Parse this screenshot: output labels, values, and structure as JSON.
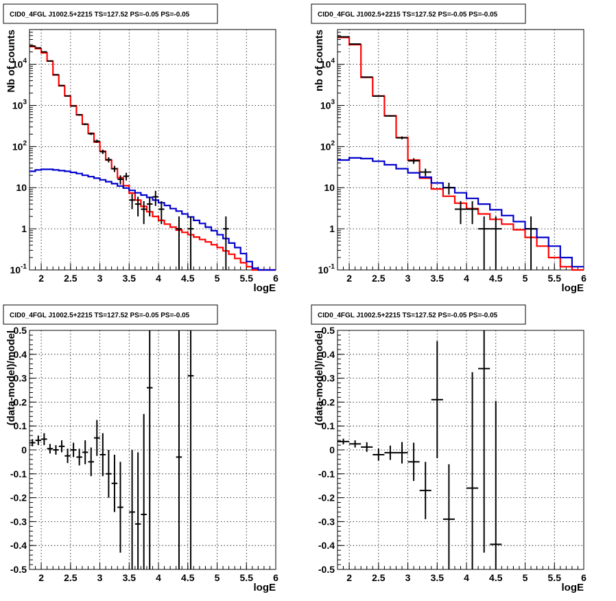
{
  "page": {
    "background": "#ffffff"
  },
  "colors": {
    "data": "#000000",
    "total_model": "#ff0000",
    "source_model": "#0000cc",
    "grid": "#000000"
  },
  "chart_data": [
    {
      "id": "top-left",
      "type": "line",
      "title": "CID0_4FGL J1002.5+2215 TS=127.52 PS=-0.05 PS=-0.05",
      "xlabel": "logE",
      "ylabel": "Nb of counts",
      "yscale": "log",
      "xlim": [
        1.8,
        6.0
      ],
      "ylim": [
        0.1,
        70000
      ],
      "xticks": [
        2,
        2.5,
        3,
        3.5,
        4,
        4.5,
        5,
        5.5,
        6
      ],
      "xtick_labels": [
        "2",
        "2.5",
        "3",
        "3.5",
        "4",
        "4.5",
        "5",
        "5.5",
        "6"
      ],
      "yticks": [
        0.1,
        1,
        10,
        100,
        1000,
        10000
      ],
      "ytick_labels": [
        "10^-1",
        "1",
        "10",
        "10^2",
        "10^3",
        "10^4"
      ],
      "grid": true,
      "bin_edges": [
        1.8,
        1.9,
        2.0,
        2.1,
        2.2,
        2.3,
        2.4,
        2.5,
        2.6,
        2.7,
        2.8,
        2.9,
        3.0,
        3.1,
        3.2,
        3.3,
        3.4,
        3.5,
        3.6,
        3.7,
        3.8,
        3.9,
        4.0,
        4.1,
        4.2,
        4.3,
        4.4,
        4.5,
        4.6,
        4.7,
        4.8,
        4.9,
        5.0,
        5.1,
        5.2,
        5.3,
        5.4,
        5.5,
        5.6,
        5.7,
        5.8,
        5.9,
        6.0
      ],
      "series": [
        {
          "role": "total_model",
          "style": "step",
          "values": [
            27000,
            24000,
            19000,
            12000,
            5500,
            3000,
            1700,
            980,
            590,
            350,
            210,
            128,
            77,
            47,
            29,
            17.5,
            11.2,
            7.4,
            5.0,
            3.5,
            2.6,
            2.0,
            1.6,
            1.3,
            1.1,
            0.93,
            0.82,
            0.72,
            0.63,
            0.55,
            0.48,
            0.41,
            0.35,
            0.29,
            0.24,
            0.19,
            0.15,
            0.12,
            0.1,
            0.1,
            0.1,
            0.1
          ]
        },
        {
          "role": "source_model",
          "style": "step",
          "values": [
            25,
            27,
            28,
            28,
            27,
            26,
            25,
            23.5,
            22,
            20,
            18.5,
            17,
            15.5,
            14,
            12.5,
            11,
            9.8,
            8.6,
            7.5,
            6.6,
            5.8,
            5.0,
            4.3,
            3.7,
            3.1,
            2.7,
            2.3,
            1.95,
            1.6,
            1.35,
            1.1,
            0.9,
            0.72,
            0.58,
            0.45,
            0.35,
            0.25,
            0.16,
            0.11,
            0.1,
            0.1,
            0.1
          ]
        },
        {
          "role": "data",
          "style": "errorbar",
          "points": [
            {
              "x": 1.85,
              "y": 27800,
              "ylo": 27600,
              "yhi": 28000
            },
            {
              "x": 1.95,
              "y": 25000,
              "ylo": 24800,
              "yhi": 25200
            },
            {
              "x": 2.05,
              "y": 20000,
              "ylo": 19850,
              "yhi": 20150
            },
            {
              "x": 2.15,
              "y": 12000,
              "ylo": 11890,
              "yhi": 12110
            },
            {
              "x": 2.25,
              "y": 5600,
              "ylo": 5525,
              "yhi": 5675
            },
            {
              "x": 2.35,
              "y": 3050,
              "ylo": 2995,
              "yhi": 3105
            },
            {
              "x": 2.45,
              "y": 1700,
              "ylo": 1659,
              "yhi": 1741
            },
            {
              "x": 2.55,
              "y": 970,
              "ylo": 939,
              "yhi": 1001
            },
            {
              "x": 2.65,
              "y": 590,
              "ylo": 566,
              "yhi": 614
            },
            {
              "x": 2.75,
              "y": 350,
              "ylo": 331,
              "yhi": 369
            },
            {
              "x": 2.85,
              "y": 205,
              "ylo": 191,
              "yhi": 219
            },
            {
              "x": 2.95,
              "y": 135,
              "ylo": 123,
              "yhi": 147
            },
            {
              "x": 3.05,
              "y": 75,
              "ylo": 66,
              "yhi": 84
            },
            {
              "x": 3.15,
              "y": 48,
              "ylo": 41,
              "yhi": 55
            },
            {
              "x": 3.25,
              "y": 29,
              "ylo": 24,
              "yhi": 34
            },
            {
              "x": 3.35,
              "y": 16,
              "ylo": 12,
              "yhi": 20
            },
            {
              "x": 3.45,
              "y": 19,
              "ylo": 15,
              "yhi": 23
            },
            {
              "x": 3.55,
              "y": 5,
              "ylo": 3,
              "yhi": 7
            },
            {
              "x": 3.65,
              "y": 4,
              "ylo": 2,
              "yhi": 6
            },
            {
              "x": 3.75,
              "y": 3,
              "ylo": 1.3,
              "yhi": 4.7
            },
            {
              "x": 3.85,
              "y": 4,
              "ylo": 2,
              "yhi": 6
            },
            {
              "x": 3.95,
              "y": 6,
              "ylo": 3.6,
              "yhi": 8.4
            },
            {
              "x": 4.05,
              "y": 3,
              "ylo": 1.3,
              "yhi": 4.7
            },
            {
              "x": 4.35,
              "y": 1,
              "ylo": 0.1,
              "yhi": 2.0
            },
            {
              "x": 4.55,
              "y": 1,
              "ylo": 0.1,
              "yhi": 2.0
            },
            {
              "x": 5.15,
              "y": 1,
              "ylo": 0.1,
              "yhi": 2.0
            }
          ]
        }
      ]
    },
    {
      "id": "top-right",
      "type": "line",
      "title": "CID0_4FGL J1002.5+2215 TS=127.52 PS=-0.05 PS=-0.05",
      "xlabel": "logE",
      "ylabel": "nb of counts",
      "yscale": "log",
      "xlim": [
        1.8,
        6.0
      ],
      "ylim": [
        0.1,
        70000
      ],
      "xticks": [
        2,
        2.5,
        3,
        3.5,
        4,
        4.5,
        5,
        5.5,
        6
      ],
      "xtick_labels": [
        "2",
        "2.5",
        "3",
        "3.5",
        "4",
        "4.5",
        "5",
        "5.5",
        "6"
      ],
      "yticks": [
        0.1,
        1,
        10,
        100,
        1000,
        10000
      ],
      "ytick_labels": [
        "10^-1",
        "1",
        "10",
        "10^2",
        "10^3",
        "10^4"
      ],
      "grid": true,
      "bin_edges": [
        1.8,
        2.0,
        2.2,
        2.4,
        2.6,
        2.8,
        3.0,
        3.2,
        3.4,
        3.6,
        3.8,
        4.0,
        4.2,
        4.4,
        4.6,
        4.8,
        5.0,
        5.2,
        5.4,
        5.6,
        5.8,
        6.0
      ],
      "series": [
        {
          "role": "total_model",
          "style": "step",
          "values": [
            45000,
            30000,
            4800,
            1700,
            560,
            165,
            47,
            17,
            9.3,
            6.2,
            4.2,
            3.1,
            2.3,
            1.7,
            1.3,
            0.95,
            0.62,
            0.38,
            0.2,
            0.12,
            0.1
          ]
        },
        {
          "role": "source_model",
          "style": "step",
          "values": [
            47,
            53,
            51,
            44,
            36,
            29,
            23,
            18,
            13,
            10,
            7.5,
            5.5,
            4.0,
            2.9,
            2.1,
            1.5,
            1.0,
            0.62,
            0.38,
            0.2,
            0.12
          ]
        },
        {
          "role": "data",
          "style": "errorbar",
          "points": [
            {
              "x": 1.9,
              "y": 46500,
              "ylo": 46280,
              "yhi": 46720
            },
            {
              "x": 2.1,
              "y": 31000,
              "ylo": 30820,
              "yhi": 31180
            },
            {
              "x": 2.3,
              "y": 4880,
              "ylo": 4810,
              "yhi": 4950
            },
            {
              "x": 2.5,
              "y": 1690,
              "ylo": 1649,
              "yhi": 1731
            },
            {
              "x": 2.7,
              "y": 555,
              "ylo": 531,
              "yhi": 579
            },
            {
              "x": 2.9,
              "y": 163,
              "ylo": 150,
              "yhi": 176
            },
            {
              "x": 3.1,
              "y": 45,
              "ylo": 38,
              "yhi": 52
            },
            {
              "x": 3.3,
              "y": 24,
              "ylo": 19,
              "yhi": 29
            },
            {
              "x": 3.7,
              "y": 10,
              "ylo": 6.8,
              "yhi": 13.2
            },
            {
              "x": 3.9,
              "y": 3,
              "ylo": 1.3,
              "yhi": 4.7
            },
            {
              "x": 4.1,
              "y": 3,
              "ylo": 1.3,
              "yhi": 4.7
            },
            {
              "x": 4.3,
              "y": 1,
              "ylo": 0.1,
              "yhi": 2.0
            },
            {
              "x": 4.5,
              "y": 1,
              "ylo": 0.1,
              "yhi": 2.0
            },
            {
              "x": 5.1,
              "y": 1,
              "ylo": 0.1,
              "yhi": 2.0
            }
          ]
        }
      ]
    },
    {
      "id": "bottom-left",
      "type": "scatter",
      "title": "CID0_4FGL J1002.5+2215 TS=127.52 PS=-0.05 PS=-0.05",
      "xlabel": "logE",
      "ylabel": "(data-model)/model",
      "yscale": "linear",
      "xlim": [
        1.8,
        6.0
      ],
      "ylim": [
        -0.5,
        0.5
      ],
      "xticks": [
        2,
        2.5,
        3,
        3.5,
        4,
        4.5,
        5,
        5.5,
        6
      ],
      "xtick_labels": [
        "2",
        "2.5",
        "3",
        "3.5",
        "4",
        "4.5",
        "5",
        "5.5",
        "6"
      ],
      "yticks": [
        -0.5,
        -0.4,
        -0.3,
        -0.2,
        -0.1,
        0,
        0.1,
        0.2,
        0.3,
        0.4,
        0.5
      ],
      "ytick_labels": [
        "-0.5",
        "-0.4",
        "-0.3",
        "-0.2",
        "-0.1",
        "0",
        "0.1",
        "0.2",
        "0.3",
        "0.4",
        "0.5"
      ],
      "grid": true,
      "xhalfwidth": 0.05,
      "series": [
        {
          "role": "data",
          "style": "errorbar",
          "points": [
            {
              "x": 1.85,
              "y": 0.03,
              "err": 0.015
            },
            {
              "x": 1.95,
              "y": 0.04,
              "err": 0.02
            },
            {
              "x": 2.05,
              "y": 0.045,
              "err": 0.025
            },
            {
              "x": 2.15,
              "y": 0.005,
              "err": 0.02
            },
            {
              "x": 2.25,
              "y": 0.0,
              "err": 0.02
            },
            {
              "x": 2.35,
              "y": 0.015,
              "err": 0.025
            },
            {
              "x": 2.45,
              "y": -0.025,
              "err": 0.03
            },
            {
              "x": 2.55,
              "y": 0.0,
              "err": 0.03
            },
            {
              "x": 2.65,
              "y": -0.03,
              "err": 0.035
            },
            {
              "x": 2.75,
              "y": -0.01,
              "err": 0.05
            },
            {
              "x": 2.85,
              "y": -0.05,
              "err": 0.06
            },
            {
              "x": 2.95,
              "y": 0.05,
              "err": 0.075
            },
            {
              "x": 3.05,
              "y": -0.02,
              "err": 0.09
            },
            {
              "x": 3.15,
              "y": -0.1,
              "err": 0.1
            },
            {
              "x": 3.25,
              "y": -0.14,
              "err": 0.12
            },
            {
              "x": 3.35,
              "y": -0.24,
              "err": 0.19
            },
            {
              "x": 3.55,
              "y": -0.26,
              "err": 0.26
            },
            {
              "x": 3.65,
              "y": -0.31,
              "err": 0.3
            },
            {
              "x": 3.75,
              "y": -0.27,
              "err": 0.42
            },
            {
              "x": 3.85,
              "y": 0.26,
              "err": 0.8
            },
            {
              "x": 4.35,
              "y": -0.03,
              "err": 1.0
            },
            {
              "x": 4.55,
              "y": 0.31,
              "err": 1.0
            }
          ]
        }
      ]
    },
    {
      "id": "bottom-right",
      "type": "scatter",
      "title": "CID0_4FGL J1002.5+2215 TS=127.52 PS=-0.05 PS=-0.05",
      "xlabel": "logE",
      "ylabel": "(data-model)/model",
      "yscale": "linear",
      "xlim": [
        1.8,
        6.0
      ],
      "ylim": [
        -0.5,
        0.5
      ],
      "xticks": [
        2,
        2.5,
        3,
        3.5,
        4,
        4.5,
        5,
        5.5,
        6
      ],
      "xtick_labels": [
        "2",
        "2.5",
        "3",
        "3.5",
        "4",
        "4.5",
        "5",
        "5.5",
        "6"
      ],
      "yticks": [
        -0.5,
        -0.4,
        -0.3,
        -0.2,
        -0.1,
        0,
        0.1,
        0.2,
        0.3,
        0.4,
        0.5
      ],
      "ytick_labels": [
        "-0.5",
        "-0.4",
        "-0.3",
        "-0.2",
        "-0.1",
        "0",
        "0.1",
        "0.2",
        "0.3",
        "0.4",
        "0.5"
      ],
      "grid": true,
      "xhalfwidth": 0.1,
      "series": [
        {
          "role": "data",
          "style": "errorbar",
          "points": [
            {
              "x": 1.9,
              "y": 0.035,
              "err": 0.012
            },
            {
              "x": 2.1,
              "y": 0.025,
              "err": 0.015
            },
            {
              "x": 2.3,
              "y": 0.012,
              "err": 0.02
            },
            {
              "x": 2.5,
              "y": -0.02,
              "err": 0.025
            },
            {
              "x": 2.7,
              "y": -0.012,
              "err": 0.03
            },
            {
              "x": 2.9,
              "y": -0.012,
              "err": 0.045
            },
            {
              "x": 3.1,
              "y": -0.05,
              "err": 0.08
            },
            {
              "x": 3.3,
              "y": -0.17,
              "err": 0.12
            },
            {
              "x": 3.5,
              "y": 0.21,
              "err": 0.245
            },
            {
              "x": 3.7,
              "y": -0.29,
              "err": 0.23
            },
            {
              "x": 4.1,
              "y": -0.16,
              "err": 0.485
            },
            {
              "x": 4.3,
              "y": 0.34,
              "err": 0.77
            },
            {
              "x": 4.5,
              "y": -0.395,
              "err": 0.6
            }
          ]
        }
      ]
    }
  ]
}
